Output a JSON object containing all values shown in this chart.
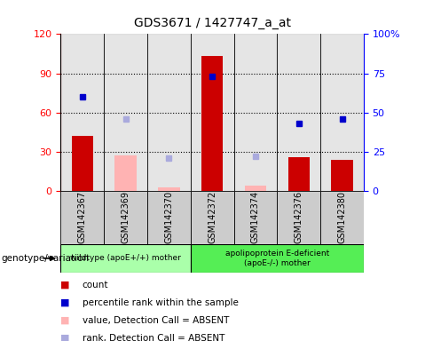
{
  "title": "GDS3671 / 1427747_a_at",
  "samples": [
    "GSM142367",
    "GSM142369",
    "GSM142370",
    "GSM142372",
    "GSM142374",
    "GSM142376",
    "GSM142380"
  ],
  "count_values": [
    42,
    null,
    null,
    103,
    null,
    26,
    24
  ],
  "count_absent_values": [
    null,
    27,
    3,
    null,
    4,
    null,
    null
  ],
  "rank_values": [
    60,
    null,
    null,
    73,
    null,
    43,
    46
  ],
  "rank_absent_values": [
    null,
    46,
    21,
    null,
    22,
    null,
    null
  ],
  "left_ylim": [
    0,
    120
  ],
  "right_ylim": [
    0,
    100
  ],
  "left_yticks": [
    0,
    30,
    60,
    90,
    120
  ],
  "right_yticks": [
    0,
    25,
    50,
    75,
    100
  ],
  "right_yticklabels": [
    "0",
    "25",
    "50",
    "75",
    "100%"
  ],
  "group1_label": "wildtype (apoE+/+) mother",
  "group2_label": "apolipoprotein E-deficient\n(apoE-/-) mother",
  "genotype_label": "genotype/variation",
  "bar_color_count": "#cc0000",
  "bar_color_absent": "#ffb3b3",
  "dot_color_rank": "#0000cc",
  "dot_color_rank_absent": "#aaaadd",
  "group1_bg": "#aaffaa",
  "group2_bg": "#55ee55",
  "col_bg": "#cccccc",
  "legend_items": [
    {
      "color": "#cc0000",
      "label": "count"
    },
    {
      "color": "#0000cc",
      "label": "percentile rank within the sample"
    },
    {
      "color": "#ffb3b3",
      "label": "value, Detection Call = ABSENT"
    },
    {
      "color": "#aaaadd",
      "label": "rank, Detection Call = ABSENT"
    }
  ]
}
